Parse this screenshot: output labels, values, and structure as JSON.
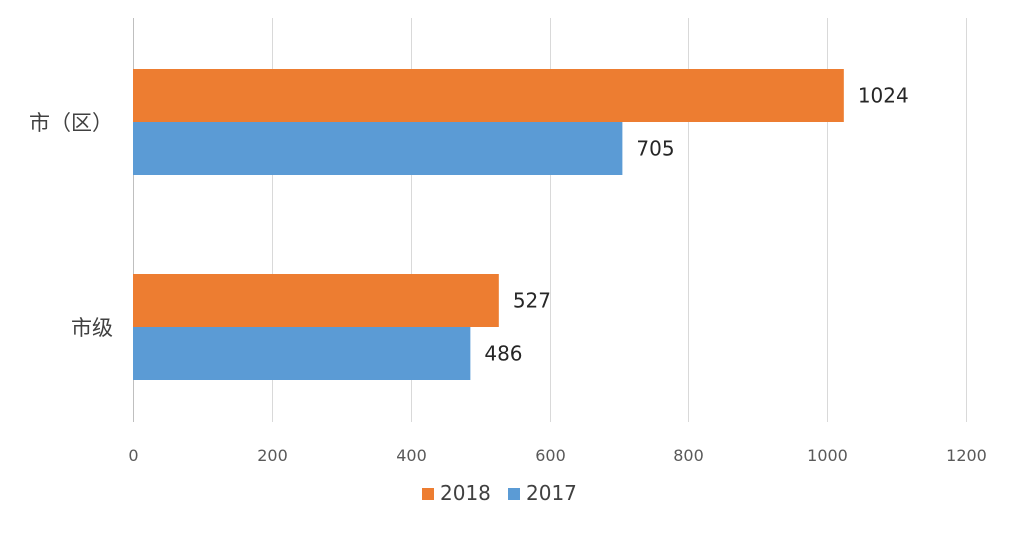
{
  "chart_data": {
    "type": "bar",
    "orientation": "horizontal",
    "categories": [
      "市（区）",
      "市级"
    ],
    "series": [
      {
        "name": "2018",
        "color": "#ED7D31",
        "values": [
          1024,
          527
        ]
      },
      {
        "name": "2017",
        "color": "#5B9BD5",
        "values": [
          705,
          486
        ]
      }
    ],
    "xlim": [
      0,
      1200
    ],
    "xticks": [
      0,
      200,
      400,
      600,
      800,
      1000,
      1200
    ],
    "grid": true,
    "legend": "bottom",
    "data_labels": true
  }
}
